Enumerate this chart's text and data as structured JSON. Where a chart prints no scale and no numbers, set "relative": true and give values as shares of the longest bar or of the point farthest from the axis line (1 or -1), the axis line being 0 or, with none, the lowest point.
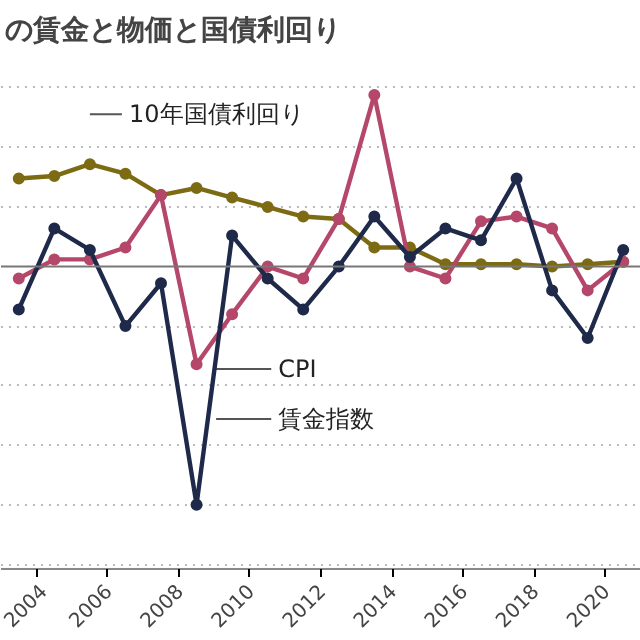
{
  "chart_data": {
    "type": "line",
    "title": "の賃金と物価と国債利回り",
    "relative": true,
    "grid": "y",
    "marker": "circle",
    "line_style": "solid",
    "x": [
      2003.5,
      2004.5,
      2005.5,
      2006.5,
      2007.5,
      2008.5,
      2009.5,
      2010.5,
      2011.5,
      2012.5,
      2013.5,
      2014.5,
      2015.5,
      2016.5,
      2017.5,
      2018.5,
      2019.5,
      2020.5
    ],
    "xlim": [
      2003.0,
      2021.0
    ],
    "xticks": [
      2004,
      2006,
      2008,
      2010,
      2012,
      2014,
      2016,
      2018,
      2020
    ],
    "series": [
      {
        "name": "10年国債利回り",
        "color": "#7d6b14",
        "values": [
          0.37,
          0.38,
          0.43,
          0.39,
          0.3,
          0.33,
          0.29,
          0.25,
          0.21,
          0.2,
          0.08,
          0.08,
          0.01,
          0.01,
          0.01,
          0.0,
          0.01,
          0.02
        ]
      },
      {
        "name": "CPI",
        "color": "#b5476a",
        "values": [
          -0.05,
          0.03,
          0.03,
          0.08,
          0.3,
          -0.41,
          -0.2,
          0.0,
          -0.05,
          0.2,
          0.72,
          0.0,
          -0.05,
          0.19,
          0.21,
          0.16,
          -0.1,
          0.02
        ]
      },
      {
        "name": "賃金指数",
        "color": "#1f2a4a",
        "values": [
          -0.18,
          0.16,
          0.07,
          -0.25,
          -0.07,
          -1.0,
          0.13,
          -0.05,
          -0.18,
          0.0,
          0.21,
          0.04,
          0.16,
          0.11,
          0.37,
          -0.1,
          -0.3,
          0.07
        ]
      }
    ]
  }
}
